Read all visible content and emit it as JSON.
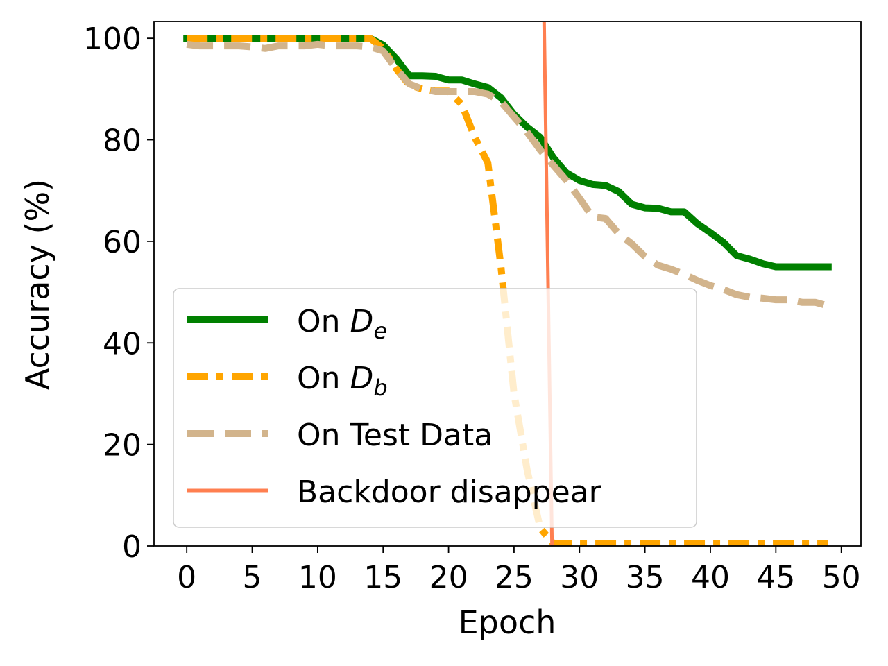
{
  "chart_data": {
    "type": "line",
    "xlabel": "Epoch",
    "ylabel": "Accuracy (%)",
    "xlim": [
      -2.5,
      51.5
    ],
    "ylim": [
      0,
      103.3
    ],
    "xticks": [
      0,
      5,
      10,
      15,
      20,
      25,
      30,
      35,
      40,
      45,
      50
    ],
    "yticks": [
      0,
      20,
      40,
      60,
      80,
      100
    ],
    "grid": false,
    "legend_position": "lower-left",
    "series": [
      {
        "name_prefix": "On ",
        "name_symbol": "D",
        "name_sub": "e",
        "color": "#008000",
        "style": "solid",
        "x": [
          0,
          1,
          2,
          3,
          4,
          5,
          6,
          7,
          8,
          9,
          10,
          11,
          12,
          13,
          14,
          15,
          16,
          17,
          18,
          19,
          20,
          21,
          22,
          23,
          24,
          25,
          26,
          27,
          28,
          29,
          30,
          31,
          32,
          33,
          34,
          35,
          36,
          37,
          38,
          39,
          40,
          41,
          42,
          43,
          44,
          45,
          46,
          47,
          48,
          49
        ],
        "y": [
          100,
          100,
          100,
          100,
          100,
          100,
          100,
          100,
          100,
          100,
          100,
          100,
          100,
          100,
          100,
          98.7,
          96,
          92.6,
          92.6,
          92.5,
          91.8,
          91.8,
          91,
          90.3,
          88.3,
          85,
          82.5,
          80.5,
          76.5,
          73.5,
          72,
          71.2,
          71,
          69.8,
          67.3,
          66.6,
          66.5,
          65.8,
          65.8,
          63.5,
          61.7,
          59.8,
          57.2,
          56.5,
          55.6,
          55,
          55,
          55,
          55,
          55
        ]
      },
      {
        "name_prefix": "On ",
        "name_symbol": "D",
        "name_sub": "b",
        "color": "#ffa500",
        "style": "dashdot",
        "x": [
          0,
          1,
          2,
          3,
          4,
          5,
          6,
          7,
          8,
          9,
          10,
          11,
          12,
          13,
          14,
          15,
          16,
          17,
          18,
          19,
          20,
          21,
          22,
          23,
          24,
          25,
          26,
          27,
          28,
          29,
          30,
          31,
          32,
          33,
          34,
          35,
          36,
          37,
          38,
          39,
          40,
          41,
          42,
          43,
          44,
          45,
          46,
          47,
          48,
          49
        ],
        "y": [
          100,
          100,
          100,
          100,
          100,
          100,
          100,
          100,
          100,
          100,
          100,
          100,
          100,
          100,
          100,
          98,
          94,
          90.8,
          90,
          89.6,
          89.6,
          87,
          80.5,
          75.5,
          55,
          30,
          15,
          3.5,
          0.5,
          0.5,
          0.5,
          0.5,
          0.5,
          0.5,
          0.5,
          0.5,
          0.5,
          0.5,
          0.5,
          0.5,
          0.5,
          0.5,
          0.5,
          0.5,
          0.5,
          0.5,
          0.5,
          0.5,
          0.5,
          0.5
        ]
      },
      {
        "name": "On Test Data",
        "color": "#d2b48c",
        "style": "dashed",
        "x": [
          0,
          1,
          2,
          3,
          4,
          5,
          6,
          7,
          8,
          9,
          10,
          11,
          12,
          13,
          14,
          15,
          16,
          17,
          18,
          19,
          20,
          21,
          22,
          23,
          24,
          25,
          26,
          27,
          28,
          29,
          30,
          31,
          32,
          33,
          34,
          35,
          36,
          37,
          38,
          39,
          40,
          41,
          42,
          43,
          44,
          45,
          46,
          47,
          48,
          49
        ],
        "y": [
          98.8,
          98.5,
          98.5,
          98.5,
          98.5,
          98.3,
          98,
          98.5,
          98.5,
          98.5,
          98.8,
          98.5,
          98.5,
          98.5,
          98.3,
          97.5,
          94,
          91,
          90,
          89.5,
          89.5,
          89.5,
          89.5,
          89,
          87.5,
          84.5,
          81.5,
          78,
          75,
          72,
          68.5,
          64.8,
          64.5,
          61.5,
          59.5,
          57,
          55.3,
          54.5,
          53.5,
          52.3,
          51.3,
          50.5,
          49.5,
          49,
          48.8,
          48.5,
          48.5,
          48,
          48,
          47.3
        ]
      },
      {
        "name": "Backdoor disappear",
        "color": "#ff7f50",
        "style": "solid",
        "x": [
          27.3,
          27.9
        ],
        "y": [
          103.3,
          0
        ]
      }
    ]
  }
}
